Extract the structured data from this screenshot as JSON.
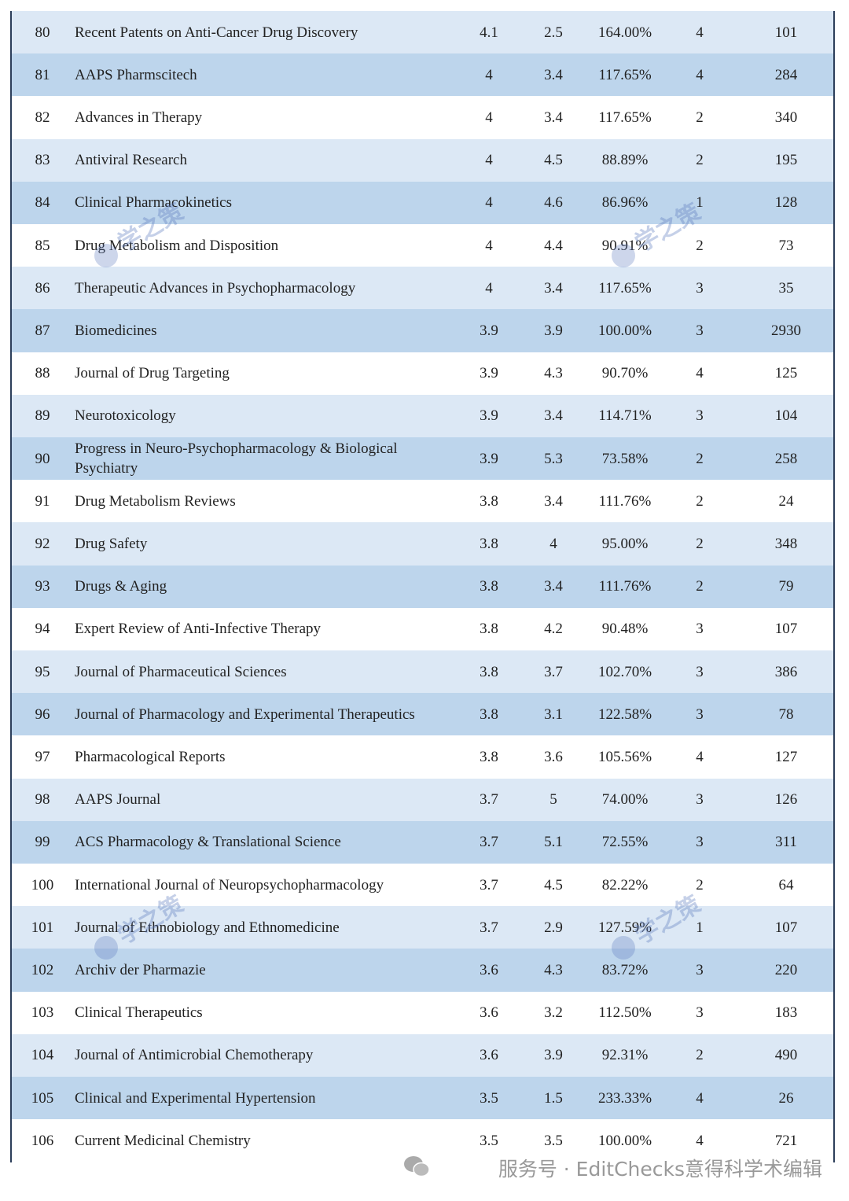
{
  "table": {
    "rows": [
      [
        "80",
        "Recent Patents on Anti-Cancer Drug Discovery",
        "4.1",
        "2.5",
        "164.00%",
        "4",
        "101"
      ],
      [
        "81",
        "AAPS Pharmscitech",
        "4",
        "3.4",
        "117.65%",
        "4",
        "284"
      ],
      [
        "82",
        "Advances in Therapy",
        "4",
        "3.4",
        "117.65%",
        "2",
        "340"
      ],
      [
        "83",
        "Antiviral Research",
        "4",
        "4.5",
        "88.89%",
        "2",
        "195"
      ],
      [
        "84",
        "Clinical Pharmacokinetics",
        "4",
        "4.6",
        "86.96%",
        "1",
        "128"
      ],
      [
        "85",
        "Drug Metabolism and Disposition",
        "4",
        "4.4",
        "90.91%",
        "2",
        "73"
      ],
      [
        "86",
        "Therapeutic Advances in Psychopharmacology",
        "4",
        "3.4",
        "117.65%",
        "3",
        "35"
      ],
      [
        "87",
        "Biomedicines",
        "3.9",
        "3.9",
        "100.00%",
        "3",
        "2930"
      ],
      [
        "88",
        "Journal of Drug Targeting",
        "3.9",
        "4.3",
        "90.70%",
        "4",
        "125"
      ],
      [
        "89",
        "Neurotoxicology",
        "3.9",
        "3.4",
        "114.71%",
        "3",
        "104"
      ],
      [
        "90",
        "Progress in Neuro-Psychopharmacology & Biological Psychiatry",
        "3.9",
        "5.3",
        "73.58%",
        "2",
        "258"
      ],
      [
        "91",
        "Drug Metabolism Reviews",
        "3.8",
        "3.4",
        "111.76%",
        "2",
        "24"
      ],
      [
        "92",
        "Drug Safety",
        "3.8",
        "4",
        "95.00%",
        "2",
        "348"
      ],
      [
        "93",
        "Drugs & Aging",
        "3.8",
        "3.4",
        "111.76%",
        "2",
        "79"
      ],
      [
        "94",
        "Expert Review of Anti-Infective Therapy",
        "3.8",
        "4.2",
        "90.48%",
        "3",
        "107"
      ],
      [
        "95",
        "Journal of Pharmaceutical Sciences",
        "3.8",
        "3.7",
        "102.70%",
        "3",
        "386"
      ],
      [
        "96",
        "Journal of Pharmacology and Experimental Therapeutics",
        "3.8",
        "3.1",
        "122.58%",
        "3",
        "78"
      ],
      [
        "97",
        "Pharmacological Reports",
        "3.8",
        "3.6",
        "105.56%",
        "4",
        "127"
      ],
      [
        "98",
        "AAPS Journal",
        "3.7",
        "5",
        "74.00%",
        "3",
        "126"
      ],
      [
        "99",
        "ACS Pharmacology & Translational Science",
        "3.7",
        "5.1",
        "72.55%",
        "3",
        "311"
      ],
      [
        "100",
        "International Journal of Neuropsychopharmacology",
        "3.7",
        "4.5",
        "82.22%",
        "2",
        "64"
      ],
      [
        "101",
        "Journal of Ethnobiology and Ethnomedicine",
        "3.7",
        "2.9",
        "127.59%",
        "1",
        "107"
      ],
      [
        "102",
        "Archiv der Pharmazie",
        "3.6",
        "4.3",
        "83.72%",
        "3",
        "220"
      ],
      [
        "103",
        "Clinical Therapeutics",
        "3.6",
        "3.2",
        "112.50%",
        "3",
        "183"
      ],
      [
        "104",
        "Journal of Antimicrobial Chemotherapy",
        "3.6",
        "3.9",
        "92.31%",
        "2",
        "490"
      ],
      [
        "105",
        "Clinical and Experimental Hypertension",
        "3.5",
        "1.5",
        "233.33%",
        "4",
        "26"
      ],
      [
        "106",
        "Current Medicinal Chemistry",
        "3.5",
        "3.5",
        "100.00%",
        "4",
        "721"
      ]
    ]
  },
  "watermark": "学之策",
  "footer": "服务号 · EditChecks意得科学术编辑"
}
